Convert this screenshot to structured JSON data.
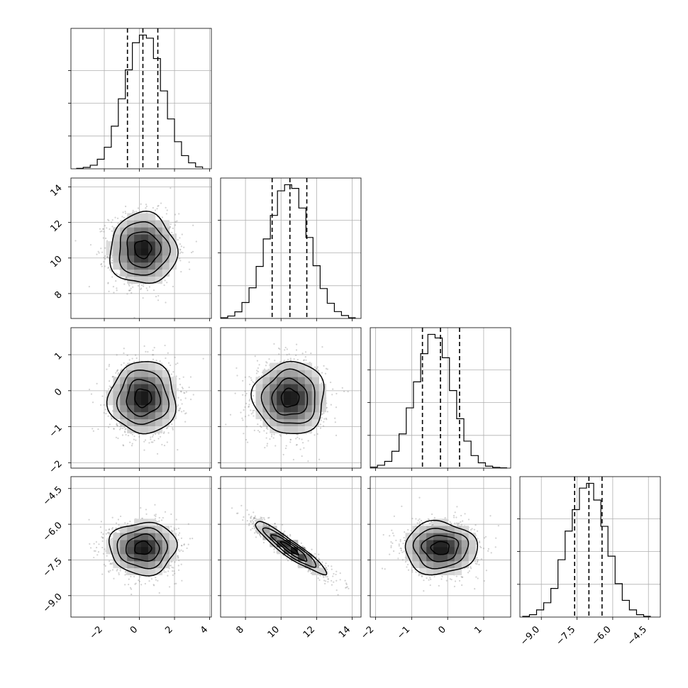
{
  "colors": {
    "hist_line": "#000000",
    "contour": "#000000",
    "grid": "#b0b0b0",
    "scatter_points": "#7f7f7f",
    "density_dark": "#000000",
    "density_light": "#ffffff",
    "background": "#ffffff"
  },
  "chart_data": {
    "type": "corner",
    "parameters": [
      {
        "index": 0,
        "lim": [
          -3.9,
          4.1
        ],
        "ticks": [
          -2,
          0,
          2,
          4
        ],
        "tick_labels": [
          "−2",
          "0",
          "2",
          "4"
        ],
        "mean": 0.2,
        "sd": 0.95
      },
      {
        "index": 1,
        "lim": [
          6.6,
          14.5
        ],
        "ticks": [
          8,
          10,
          12,
          14
        ],
        "tick_labels": [
          "8",
          "10",
          "12",
          "14"
        ],
        "mean": 10.5,
        "sd": 1.0
      },
      {
        "index": 2,
        "lim": [
          -2.15,
          1.75
        ],
        "ticks": [
          -2,
          -1,
          0,
          1
        ],
        "tick_labels": [
          "−2",
          "−1",
          "0",
          "1"
        ],
        "mean": -0.2,
        "sd": 0.5
      },
      {
        "index": 3,
        "lim": [
          -9.9,
          -4.0
        ],
        "ticks": [
          -9.0,
          -7.5,
          -6.0,
          -4.5
        ],
        "tick_labels": [
          "−9.0",
          "−7.5",
          "−6.0",
          "−4.5"
        ],
        "mean": -7.0,
        "sd": 0.55
      }
    ],
    "histograms": [
      {
        "param": 0,
        "bins": [
          -3.6,
          -3.2,
          -2.8,
          -2.4,
          -2.0,
          -1.6,
          -1.2,
          -0.8,
          -0.4,
          0.0,
          0.4,
          0.8,
          1.2,
          1.6,
          2.0,
          2.4,
          2.8,
          3.2,
          3.6
        ],
        "counts": [
          2,
          6,
          15,
          40,
          90,
          178,
          292,
          413,
          526,
          558,
          545,
          460,
          325,
          208,
          113,
          55,
          25,
          8,
          2
        ],
        "quantiles": [
          -0.68,
          0.2,
          1.05
        ]
      },
      {
        "param": 1,
        "bins": [
          6.6,
          7.0,
          7.4,
          7.8,
          8.2,
          8.6,
          9.0,
          9.4,
          9.8,
          10.2,
          10.6,
          11.0,
          11.4,
          11.8,
          12.2,
          12.6,
          13.0,
          13.4,
          13.8,
          14.2
        ],
        "counts": [
          3,
          10,
          27,
          65,
          125,
          212,
          324,
          420,
          520,
          545,
          530,
          450,
          330,
          215,
          122,
          62,
          28,
          12,
          3
        ],
        "quantiles": [
          9.5,
          10.5,
          11.45
        ]
      },
      {
        "param": 2,
        "bins": [
          -2.15,
          -1.95,
          -1.75,
          -1.55,
          -1.35,
          -1.15,
          -0.95,
          -0.75,
          -0.55,
          -0.35,
          -0.15,
          0.05,
          0.25,
          0.45,
          0.65,
          0.85,
          1.05,
          1.25,
          1.45,
          1.65
        ],
        "counts": [
          4,
          12,
          28,
          70,
          142,
          250,
          358,
          475,
          555,
          540,
          458,
          322,
          205,
          112,
          52,
          22,
          8,
          3,
          1
        ],
        "quantiles": [
          -0.7,
          -0.2,
          0.33
        ]
      },
      {
        "param": 3,
        "bins": [
          -9.8,
          -9.5,
          -9.2,
          -8.9,
          -8.6,
          -8.3,
          -8.0,
          -7.7,
          -7.4,
          -7.1,
          -6.8,
          -6.5,
          -6.2,
          -5.9,
          -5.6,
          -5.3,
          -5.0,
          -4.7,
          -4.4
        ],
        "counts": [
          3,
          10,
          30,
          60,
          120,
          240,
          360,
          450,
          540,
          560,
          490,
          380,
          255,
          140,
          70,
          30,
          10,
          3
        ],
        "quantiles": [
          -7.6,
          -7.0,
          -6.45
        ]
      }
    ],
    "pairs": [
      {
        "row": 1,
        "col": 0,
        "corr": 0.0
      },
      {
        "row": 2,
        "col": 0,
        "corr": 0.0
      },
      {
        "row": 2,
        "col": 1,
        "corr": 0.0
      },
      {
        "row": 3,
        "col": 0,
        "corr": 0.0
      },
      {
        "row": 3,
        "col": 1,
        "corr": -0.93
      },
      {
        "row": 3,
        "col": 2,
        "corr": 0.0
      }
    ],
    "contour_levels_sigma": [
      0.5,
      1.0,
      1.5,
      2.0
    ],
    "grid": true,
    "title": "",
    "xlabel": "",
    "ylabel": ""
  }
}
